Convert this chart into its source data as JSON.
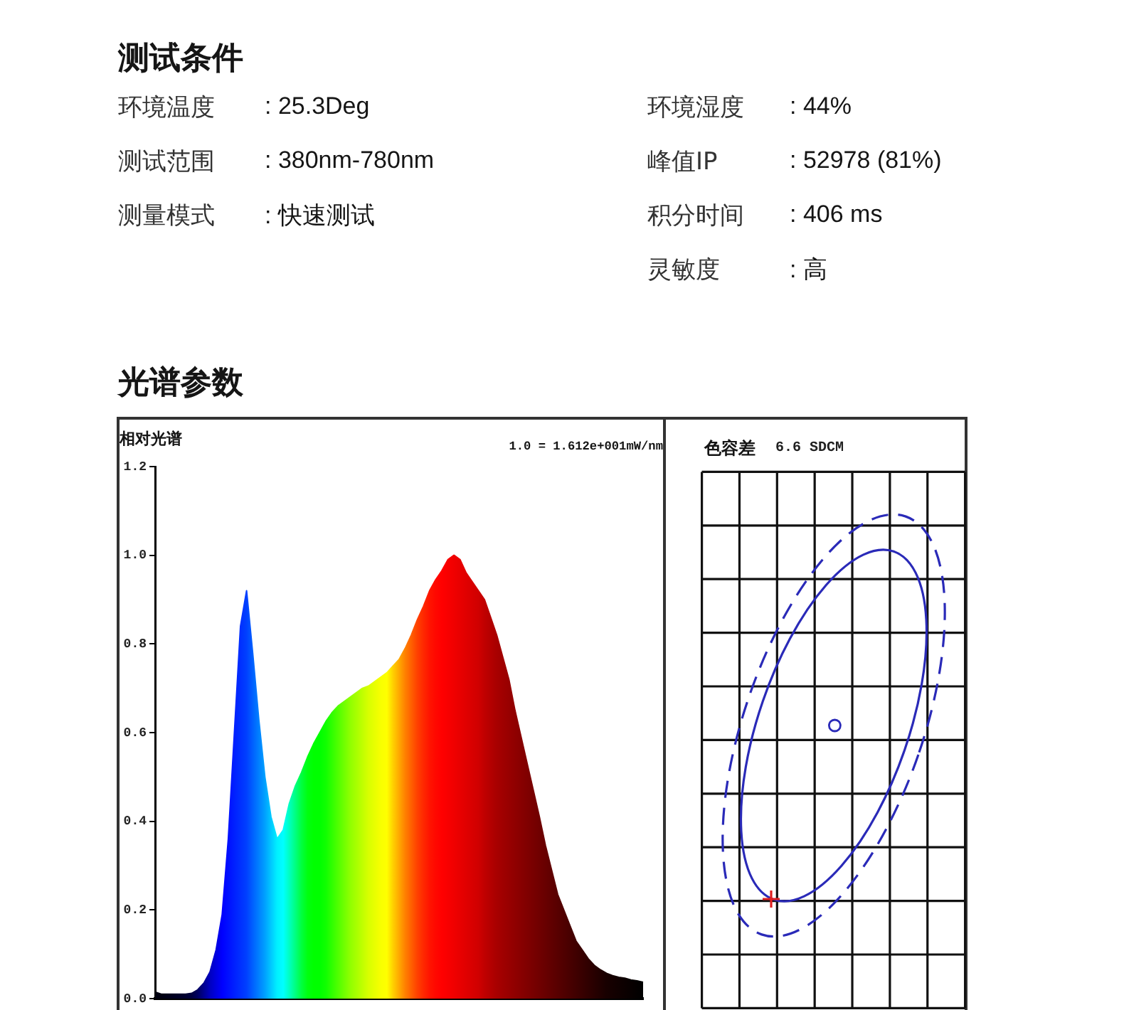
{
  "chart_data": [
    {
      "type": "other",
      "title": "测试条件",
      "annotations": [
        "环境温度",
        ": 25.3Deg",
        "测试范围",
        ": 380nm-780nm",
        "测量模式",
        ": 快速测试"
      ]
    },
    {
      "type": "other",
      "annotations": [
        "环境湿度",
        ": 44%",
        "峰值IP",
        ": 52978 (81%)",
        "积分时间",
        ": 406 ms",
        "灵敏度",
        ": 高"
      ]
    },
    {
      "type": "area",
      "title": "光谱参数",
      "ylabel": "相对光谱",
      "annotations": [
        "1.0 = 1.612e+001mW/nm"
      ],
      "categories": [
        null,
        null,
        null,
        null,
        null,
        null,
        null,
        null,
        null,
        null,
        null,
        null,
        null,
        null,
        null,
        null,
        null,
        null,
        null,
        null,
        null,
        null,
        null,
        null,
        null,
        null,
        null,
        null,
        null,
        null,
        null,
        null,
        null,
        null,
        null,
        null,
        null,
        null,
        null,
        null,
        null,
        null,
        null,
        null,
        null,
        null,
        null,
        null,
        null,
        null,
        null,
        null,
        null,
        null,
        null,
        null,
        null,
        null,
        null,
        null,
        null,
        null,
        null,
        null,
        null,
        null,
        null,
        null,
        null,
        null,
        null,
        null,
        null,
        null,
        null,
        null,
        null,
        null,
        null,
        null,
        null
      ],
      "values": [
        0.015,
        0.01,
        0.01,
        0.01,
        0.01,
        0.01,
        0.012,
        0.02,
        0.035,
        0.06,
        0.11,
        0.19,
        0.36,
        0.6,
        0.84,
        0.92,
        0.78,
        0.63,
        0.5,
        0.41,
        0.36,
        0.38,
        0.44,
        0.48,
        0.51,
        0.545,
        0.575,
        0.6,
        0.625,
        0.645,
        0.66,
        0.67,
        0.68,
        0.69,
        0.7,
        0.705,
        0.715,
        0.725,
        0.735,
        0.75,
        0.765,
        0.79,
        0.82,
        0.855,
        0.885,
        0.92,
        0.945,
        0.965,
        0.99,
        1.0,
        0.99,
        0.96,
        0.94,
        0.92,
        0.9,
        0.86,
        0.82,
        0.77,
        0.72,
        0.65,
        0.59,
        0.53,
        0.47,
        0.41,
        0.345,
        0.29,
        0.235,
        0.2,
        0.165,
        0.13,
        0.11,
        0.09,
        0.075,
        0.065,
        0.057,
        0.052,
        0.048,
        0.046,
        0.042,
        0.04,
        0.037
      ],
      "colors": [
        "#000010",
        "#000010",
        "#000018",
        "#000020",
        "#000028",
        "#000030",
        "#000040",
        "#000060",
        "#000090",
        "#0000c0",
        "#0000e0",
        "#0000ff",
        "#0010ff",
        "#0020ff",
        "#0030ff",
        "#0040ff",
        "#0060ff",
        "#0080ff",
        "#00a0ff",
        "#00c8ff",
        "#00f0ff",
        "#00ffff",
        "#00ffc0",
        "#00ff80",
        "#00ff40",
        "#00ff10",
        "#00ff00",
        "#00ff00",
        "#10ff00",
        "#30ff00",
        "#50ff00",
        "#70ff00",
        "#90ff00",
        "#a8ff00",
        "#c0ff00",
        "#d8ff00",
        "#e8ff00",
        "#f8ff00",
        "#ffff00",
        "#ffd000",
        "#ffa800",
        "#ff8000",
        "#ff6000",
        "#ff4000",
        "#ff2800",
        "#ff1400",
        "#ff0800",
        "#ff0000",
        "#f80000",
        "#f00000",
        "#e80000",
        "#e00000",
        "#d80000",
        "#d00000",
        "#c00000",
        "#b40000",
        "#a80000",
        "#a00000",
        "#980000",
        "#900000",
        "#880000",
        "#800000",
        "#780000",
        "#700000",
        "#680000",
        "#600000",
        "#580000",
        "#500000",
        "#480000",
        "#400000",
        "#380000",
        "#300000",
        "#280000",
        "#200000",
        "#180000",
        "#140000",
        "#100000",
        "#0c0000",
        "#080000",
        "#040000",
        "#000000"
      ],
      "ylim": [
        0,
        1.2
      ],
      "yticks": [
        {
          "value": 0,
          "label": "0.0"
        },
        0.2,
        0.4,
        0.6,
        0.8,
        {
          "value": 1,
          "label": "1.0"
        },
        1.2
      ],
      "tick_labels": "y"
    },
    {
      "type": "other",
      "title": "色容差",
      "annotations": [
        "6.6 SDCM"
      ]
    }
  ]
}
